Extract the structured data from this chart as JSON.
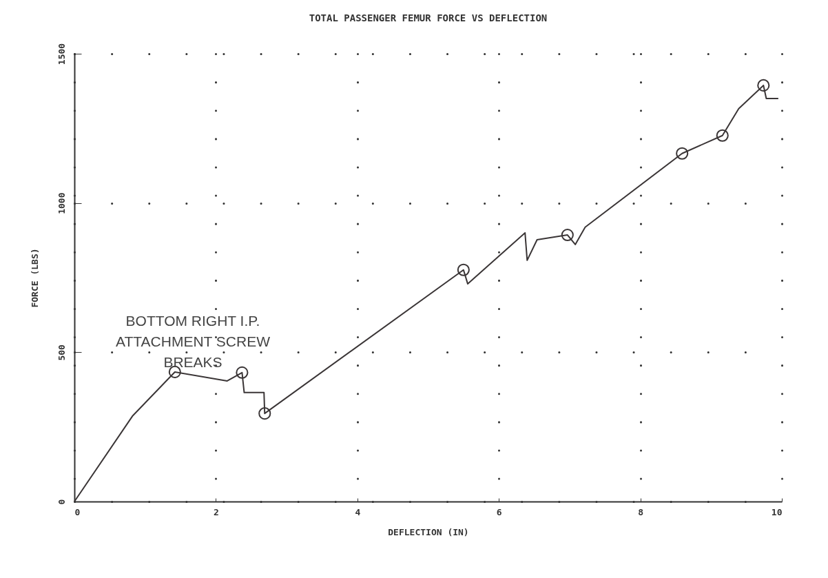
{
  "chart_data": {
    "type": "line",
    "title": "TOTAL PASSENGER FEMUR FORCE VS DEFLECTION",
    "xlabel": "DEFLECTION (IN)",
    "ylabel": "FORCE (LBS)",
    "annotations": [
      "BOTTOM RIGHT I.P.\nATTACHMENT SCREW\nBREAKS"
    ],
    "xlim": [
      0,
      10
    ],
    "xticks": [
      0,
      2,
      4,
      6,
      8,
      10
    ],
    "ylim": [
      0,
      1500
    ],
    "yticks": [
      0,
      500,
      1000,
      1500
    ],
    "grid": true,
    "series": [
      {
        "color": "#3a3536",
        "marker": "none",
        "x": [
          0,
          0.82,
          1.42,
          2.16,
          2.37,
          2.4,
          2.68,
          2.69,
          5.5,
          5.56,
          6.37,
          6.4,
          6.54,
          6.97,
          7.08,
          7.22,
          8.59,
          9.16,
          9.39,
          9.74,
          9.78,
          9.95
        ],
        "values": [
          0,
          286,
          434,
          404,
          432,
          365,
          365,
          295,
          776,
          729,
          900,
          808,
          877,
          893,
          861,
          919,
          1166,
          1226,
          1316,
          1394,
          1350,
          1350
        ]
      },
      {
        "type": "scatter",
        "color": "#3a3536",
        "marker": "circle",
        "x": [
          1.42,
          2.37,
          2.69,
          5.5,
          6.97,
          8.59,
          9.16,
          9.74
        ],
        "values": [
          434,
          432,
          295,
          776,
          893,
          1166,
          1226,
          1394
        ]
      }
    ]
  }
}
